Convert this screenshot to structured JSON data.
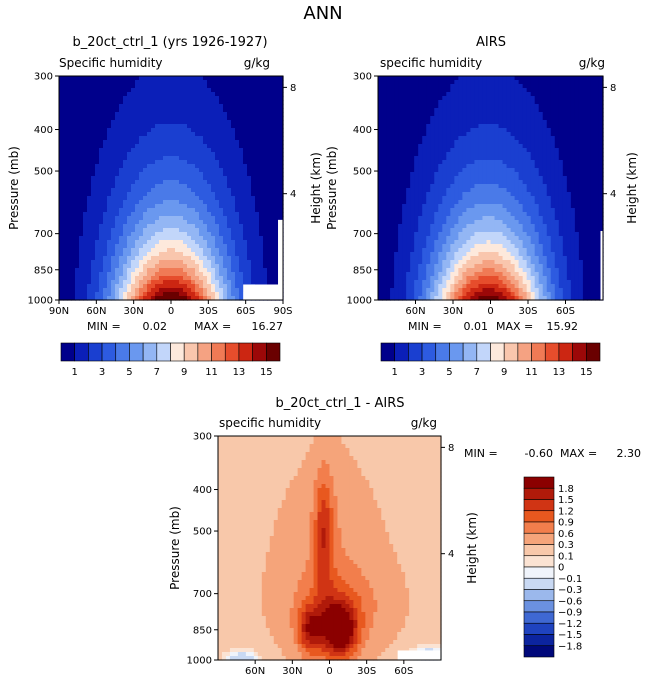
{
  "figure_title": "ANN",
  "chart_data": [
    {
      "type": "heatmap",
      "title": "b_20ct_ctrl_1 (yrs 1926-1927)",
      "variable": "Specific humidity",
      "units": "g/kg",
      "ylabel": "Pressure (mb)",
      "ylabel_right": "Height (km)",
      "x_ticks": [
        "90N",
        "60N",
        "30N",
        "0",
        "30S",
        "60S",
        "90S"
      ],
      "x_range": [
        90,
        -90
      ],
      "y_ticks": [
        "300",
        "400",
        "500",
        "700",
        "850",
        "1000"
      ],
      "y_range": [
        1000,
        300
      ],
      "y_scale": "log",
      "height_ticks": [
        "8",
        "4"
      ],
      "min_label": "MIN =",
      "min_value": "0.02",
      "max_label": "MAX =",
      "max_value": "16.27",
      "levels": [
        1,
        2,
        3,
        4,
        5,
        6,
        7,
        8,
        9,
        10,
        11,
        12,
        13,
        14,
        15
      ],
      "colorbar_labels": [
        "1",
        "3",
        "5",
        "7",
        "9",
        "11",
        "13",
        "15"
      ],
      "peak_value": 16.3,
      "peak_lat": 0,
      "peak_pressure": 1000,
      "blank_region": "below-ground near 60S-90S",
      "grid": false
    },
    {
      "type": "heatmap",
      "title": "AIRS",
      "variable": "specific humidity",
      "units": "g/kg",
      "ylabel": "Pressure (mb)",
      "ylabel_right": "Height (km)",
      "x_ticks": [
        "60N",
        "30N",
        "0",
        "30S",
        "60S"
      ],
      "x_range": [
        90,
        -90
      ],
      "y_ticks": [
        "300",
        "400",
        "500",
        "700",
        "850",
        "1000"
      ],
      "y_range": [
        1000,
        300
      ],
      "y_scale": "log",
      "height_ticks": [
        "8",
        "4"
      ],
      "min_label": "MIN =",
      "min_value": "0.01",
      "max_label": "MAX =",
      "max_value": "15.92",
      "levels": [
        1,
        2,
        3,
        4,
        5,
        6,
        7,
        8,
        9,
        10,
        11,
        12,
        13,
        14,
        15
      ],
      "colorbar_labels": [
        "1",
        "3",
        "5",
        "7",
        "9",
        "11",
        "13",
        "15"
      ],
      "peak_value": 15.9,
      "peak_lat": 2,
      "peak_pressure": 1000,
      "grid": false
    },
    {
      "type": "heatmap",
      "title": "b_20ct_ctrl_1 - AIRS",
      "variable": "specific humidity",
      "units": "g/kg",
      "ylabel": "Pressure (mb)",
      "ylabel_right": "Height (km)",
      "x_ticks": [
        "60N",
        "30N",
        "0",
        "30S",
        "60S"
      ],
      "x_range": [
        90,
        -90
      ],
      "y_ticks": [
        "300",
        "400",
        "500",
        "700",
        "850",
        "1000"
      ],
      "y_range": [
        1000,
        300
      ],
      "y_scale": "log",
      "height_ticks": [
        "8",
        "4"
      ],
      "min_label": "MIN =",
      "min_value": "-0.60",
      "max_label": "MAX =",
      "max_value": "2.30",
      "levels": [
        -1.8,
        -1.5,
        -1.2,
        -0.9,
        -0.6,
        -0.3,
        -0.1,
        0,
        0.1,
        0.3,
        0.6,
        0.9,
        1.2,
        1.5,
        1.8
      ],
      "colorbar_labels": [
        "1.8",
        "1.5",
        "1.2",
        "0.9",
        "0.6",
        "0.3",
        "0.1",
        "0",
        "−0.1",
        "−0.3",
        "−0.6",
        "−0.9",
        "−1.2",
        "−1.5",
        "−1.8"
      ],
      "peak_value": 2.3,
      "peak_lat": -8,
      "peak_pressure": 850,
      "grid": false
    }
  ],
  "colors": {
    "humidity_scale": [
      "#00008b",
      "#0b1fb8",
      "#1a3fd0",
      "#2d5be0",
      "#4a7ae8",
      "#6a98ef",
      "#93b6f4",
      "#c2d6fa",
      "#fde9dc",
      "#f9c6ad",
      "#f5a282",
      "#f07a55",
      "#e64d2c",
      "#cc2612",
      "#9c0808",
      "#6a0000"
    ],
    "difference_scale": [
      "#8b0000",
      "#b01a0a",
      "#d03414",
      "#e8581f",
      "#f27e4c",
      "#f5a47a",
      "#f8c8aa",
      "#fbe3d3",
      "#f0f4fb",
      "#c9d9f3",
      "#9bb8ec",
      "#6b91e0",
      "#3f68d2",
      "#1f43bf",
      "#0c249f",
      "#00087a"
    ]
  }
}
